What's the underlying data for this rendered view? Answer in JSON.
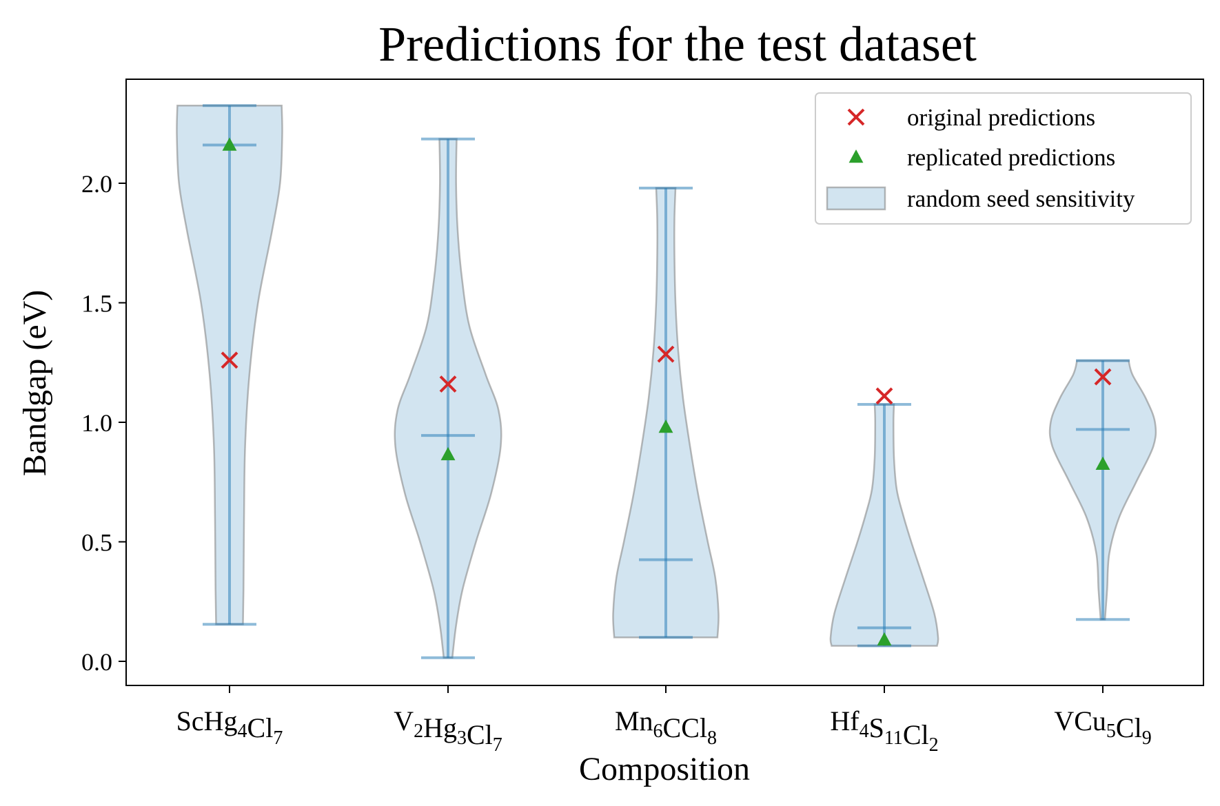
{
  "chart_data": {
    "type": "violin",
    "title": "Predictions for the test dataset",
    "xlabel": "Composition",
    "ylabel": "Bandgap (eV)",
    "ylim": [
      -0.1,
      2.44
    ],
    "yticks": [
      "0.0",
      "0.5",
      "1.0",
      "1.5",
      "2.0"
    ],
    "ytick_values": [
      0.0,
      0.5,
      1.0,
      1.5,
      2.0
    ],
    "grid": false,
    "legend_position": "top-right",
    "categories": [
      {
        "base": "ScHg",
        "parts": [
          [
            "Sc",
            ""
          ],
          [
            "Hg",
            "4"
          ],
          [
            "Cl",
            "7"
          ]
        ]
      },
      {
        "base": "V2Hg3Cl7",
        "parts": [
          [
            "V",
            "2"
          ],
          [
            "Hg",
            "3"
          ],
          [
            "Cl",
            "7"
          ]
        ]
      },
      {
        "base": "Mn6CCl8",
        "parts": [
          [
            "Mn",
            "6"
          ],
          [
            "CCl",
            "8"
          ]
        ]
      },
      {
        "base": "Hf4S11Cl2",
        "parts": [
          [
            "Hf",
            "4"
          ],
          [
            "S",
            "11"
          ],
          [
            "Cl",
            "2"
          ]
        ]
      },
      {
        "base": "VCu5Cl9",
        "parts": [
          [
            "VCu",
            "5"
          ],
          [
            "Cl",
            "9"
          ]
        ]
      }
    ],
    "legend": [
      {
        "label": "original predictions",
        "marker": "x",
        "color": "#d62728"
      },
      {
        "label": "replicated predictions",
        "marker": "triangle",
        "color": "#2ca02c"
      },
      {
        "label": "random seed sensitivity",
        "marker": "patch",
        "color": "#1f77b4"
      }
    ],
    "violins": [
      {
        "min": 0.155,
        "max": 2.325,
        "median": 2.16,
        "original": 1.26,
        "replicated": 2.16,
        "profile": [
          [
            0.155,
            0.25
          ],
          [
            0.3,
            0.26
          ],
          [
            0.6,
            0.27
          ],
          [
            0.9,
            0.29
          ],
          [
            1.2,
            0.37
          ],
          [
            1.5,
            0.53
          ],
          [
            1.8,
            0.79
          ],
          [
            2.0,
            0.94
          ],
          [
            2.2,
            0.98
          ],
          [
            2.325,
            0.97
          ]
        ]
      },
      {
        "min": 0.015,
        "max": 2.185,
        "median": 0.945,
        "original": 1.16,
        "replicated": 0.865,
        "profile": [
          [
            0.015,
            0.08
          ],
          [
            0.15,
            0.15
          ],
          [
            0.3,
            0.27
          ],
          [
            0.5,
            0.52
          ],
          [
            0.7,
            0.8
          ],
          [
            0.9,
            0.98
          ],
          [
            1.05,
            0.94
          ],
          [
            1.2,
            0.7
          ],
          [
            1.4,
            0.4
          ],
          [
            1.6,
            0.26
          ],
          [
            1.8,
            0.18
          ],
          [
            2.0,
            0.15
          ],
          [
            2.185,
            0.16
          ]
        ]
      },
      {
        "min": 0.1,
        "max": 1.98,
        "median": 0.425,
        "original": 1.285,
        "replicated": 0.98,
        "profile": [
          [
            0.1,
            0.96
          ],
          [
            0.2,
            0.98
          ],
          [
            0.35,
            0.92
          ],
          [
            0.5,
            0.78
          ],
          [
            0.7,
            0.6
          ],
          [
            0.9,
            0.45
          ],
          [
            1.1,
            0.32
          ],
          [
            1.3,
            0.23
          ],
          [
            1.5,
            0.18
          ],
          [
            1.7,
            0.16
          ],
          [
            1.85,
            0.16
          ],
          [
            1.98,
            0.18
          ]
        ]
      },
      {
        "min": 0.065,
        "max": 1.075,
        "median": 0.14,
        "original": 1.11,
        "replicated": 0.09,
        "profile": [
          [
            0.065,
            0.98
          ],
          [
            0.1,
            1.0
          ],
          [
            0.2,
            0.93
          ],
          [
            0.35,
            0.72
          ],
          [
            0.5,
            0.5
          ],
          [
            0.62,
            0.34
          ],
          [
            0.72,
            0.23
          ],
          [
            0.85,
            0.18
          ],
          [
            1.0,
            0.17
          ],
          [
            1.075,
            0.18
          ]
        ]
      },
      {
        "min": 0.175,
        "max": 1.258,
        "median": 0.97,
        "original": 1.19,
        "replicated": 0.825,
        "profile": [
          [
            0.175,
            0.04
          ],
          [
            0.3,
            0.08
          ],
          [
            0.45,
            0.12
          ],
          [
            0.6,
            0.3
          ],
          [
            0.75,
            0.62
          ],
          [
            0.9,
            0.94
          ],
          [
            1.0,
            0.97
          ],
          [
            1.1,
            0.8
          ],
          [
            1.2,
            0.55
          ],
          [
            1.258,
            0.48
          ]
        ]
      }
    ]
  }
}
